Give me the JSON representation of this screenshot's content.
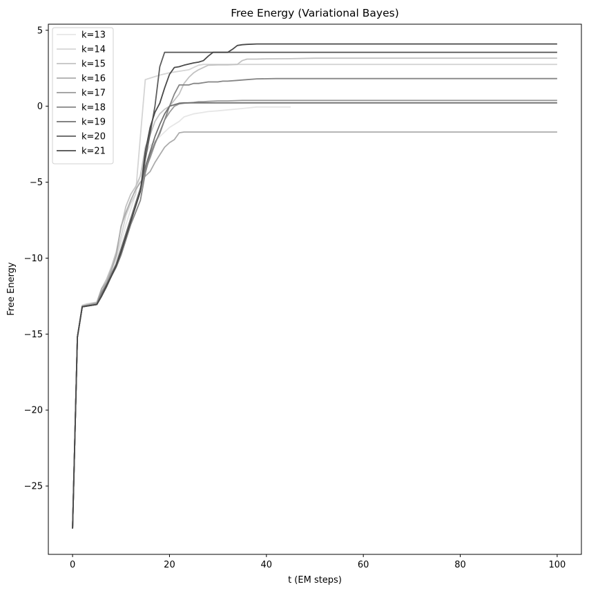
{
  "chart_data": {
    "type": "line",
    "title": "Free Energy (Variational Bayes)",
    "xlabel": "t (EM steps)",
    "ylabel": "Free Energy",
    "xlim": [
      -5,
      105
    ],
    "ylim": [
      -29.5,
      5.4
    ],
    "xticks": [
      0,
      20,
      40,
      60,
      80,
      100
    ],
    "yticks": [
      5,
      0,
      -5,
      -10,
      -15,
      -20,
      -25
    ],
    "ytick_labels": [
      "5",
      "0",
      "−5",
      "−10",
      "−15",
      "−20",
      "−25"
    ],
    "grid": false,
    "legend_position": "upper-left",
    "series": [
      {
        "name": "k=13",
        "color": "#e6e6e6",
        "x": [
          0,
          1,
          2,
          3,
          4,
          5,
          6,
          7,
          8,
          9,
          10,
          11,
          12,
          13,
          14,
          15,
          16,
          17,
          18,
          19,
          20,
          21,
          22,
          23,
          24,
          25,
          26,
          28,
          30,
          35,
          38,
          45
        ],
        "y": [
          -27.8,
          -15.2,
          -13.2,
          -13.1,
          -13.05,
          -13.0,
          -12.2,
          -11.6,
          -11.0,
          -10.2,
          -9.0,
          -7.8,
          -6.8,
          -5.8,
          -4.5,
          -3.2,
          -2.6,
          -2.3,
          -2.0,
          -1.7,
          -1.4,
          -1.2,
          -1.0,
          -0.7,
          -0.6,
          -0.5,
          -0.45,
          -0.35,
          -0.3,
          -0.15,
          -0.05,
          -0.05
        ]
      },
      {
        "name": "k=14",
        "color": "#d4d4d4",
        "x": [
          0,
          1,
          2,
          3,
          4,
          5,
          6,
          7,
          8,
          9,
          10,
          11,
          12,
          13,
          14,
          15,
          16,
          18,
          20,
          22,
          24,
          25,
          26,
          27,
          100
        ],
        "y": [
          -27.8,
          -15.2,
          -13.1,
          -13.0,
          -12.95,
          -12.9,
          -12.0,
          -11.5,
          -10.8,
          -10.0,
          -8.6,
          -7.2,
          -6.4,
          -5.8,
          -2.0,
          1.75,
          1.85,
          2.05,
          2.2,
          2.3,
          2.4,
          2.55,
          2.7,
          2.75,
          2.75
        ]
      },
      {
        "name": "k=15",
        "color": "#c2c2c2",
        "x": [
          0,
          1,
          2,
          3,
          4,
          5,
          6,
          7,
          8,
          9,
          10,
          11,
          12,
          13,
          14,
          15,
          16,
          17,
          18,
          19,
          20,
          21,
          22,
          23,
          24,
          25,
          26,
          28,
          30,
          32,
          34,
          35,
          36,
          38,
          40,
          45,
          50,
          100
        ],
        "y": [
          -27.8,
          -15.2,
          -13.15,
          -13.05,
          -13.0,
          -12.9,
          -12.0,
          -11.4,
          -10.6,
          -9.6,
          -8.0,
          -6.6,
          -5.8,
          -5.3,
          -4.6,
          -2.7,
          -1.9,
          -1.0,
          -0.5,
          -0.2,
          0.0,
          0.4,
          0.8,
          1.5,
          1.9,
          2.2,
          2.4,
          2.7,
          2.72,
          2.72,
          2.75,
          3.0,
          3.1,
          3.1,
          3.12,
          3.13,
          3.16,
          3.16
        ]
      },
      {
        "name": "k=16",
        "color": "#ababab",
        "x": [
          0,
          1,
          2,
          3,
          4,
          5,
          6,
          7,
          8,
          9,
          10,
          11,
          12,
          13,
          14,
          15,
          16,
          17,
          18,
          19,
          20,
          21,
          22,
          23,
          24,
          100
        ],
        "y": [
          -27.8,
          -15.2,
          -13.15,
          -13.1,
          -13.0,
          -12.95,
          -12.0,
          -11.6,
          -10.8,
          -9.8,
          -7.9,
          -7.0,
          -6.2,
          -5.5,
          -5.0,
          -4.6,
          -4.3,
          -3.7,
          -3.2,
          -2.7,
          -2.4,
          -2.2,
          -1.75,
          -1.7,
          -1.7,
          -1.7
        ]
      },
      {
        "name": "k=17",
        "color": "#989898",
        "x": [
          0,
          1,
          2,
          3,
          4,
          5,
          6,
          7,
          8,
          9,
          10,
          11,
          12,
          13,
          14,
          15,
          16,
          17,
          18,
          19,
          20,
          21,
          22,
          23,
          24,
          25,
          26,
          27,
          28,
          30,
          32,
          35,
          38,
          42,
          100
        ],
        "y": [
          -27.8,
          -15.2,
          -13.2,
          -13.1,
          -13.05,
          -13.0,
          -12.2,
          -11.7,
          -11.0,
          -10.4,
          -9.4,
          -8.4,
          -7.4,
          -6.6,
          -5.6,
          -4.2,
          -3.4,
          -2.5,
          -1.7,
          -0.9,
          -0.4,
          0.0,
          0.15,
          0.2,
          0.22,
          0.25,
          0.3,
          0.3,
          0.32,
          0.35,
          0.35,
          0.38,
          0.38,
          0.38,
          0.38
        ]
      },
      {
        "name": "k=18",
        "color": "#848484",
        "x": [
          0,
          1,
          2,
          3,
          4,
          5,
          6,
          7,
          8,
          9,
          10,
          11,
          12,
          13,
          14,
          15,
          16,
          17,
          18,
          19,
          20,
          21,
          22,
          23,
          24,
          25,
          26,
          27,
          28,
          29,
          30,
          31,
          32,
          34,
          36,
          38,
          42,
          100
        ],
        "y": [
          -27.8,
          -15.2,
          -13.2,
          -13.15,
          -13.1,
          -13.05,
          -12.3,
          -11.8,
          -11.2,
          -10.6,
          -9.8,
          -8.8,
          -7.8,
          -7.0,
          -6.2,
          -4.4,
          -3.2,
          -2.4,
          -1.8,
          -0.9,
          0.0,
          0.8,
          1.4,
          1.4,
          1.4,
          1.5,
          1.5,
          1.55,
          1.6,
          1.6,
          1.6,
          1.65,
          1.65,
          1.7,
          1.75,
          1.8,
          1.82,
          1.82
        ]
      },
      {
        "name": "k=19",
        "color": "#707070",
        "x": [
          0,
          1,
          2,
          3,
          4,
          5,
          6,
          7,
          8,
          9,
          10,
          11,
          12,
          13,
          14,
          15,
          16,
          17,
          18,
          19,
          20,
          21,
          22,
          23,
          100
        ],
        "y": [
          -27.8,
          -15.2,
          -13.2,
          -13.15,
          -13.1,
          -13.05,
          -12.4,
          -11.8,
          -11.1,
          -10.4,
          -9.4,
          -8.4,
          -7.4,
          -6.4,
          -5.4,
          -4.0,
          -3.0,
          -2.0,
          -1.2,
          -0.5,
          0.0,
          0.1,
          0.2,
          0.22,
          0.22
        ]
      },
      {
        "name": "k=20",
        "color": "#5c5c5c",
        "x": [
          0,
          1,
          2,
          3,
          4,
          5,
          6,
          7,
          8,
          9,
          10,
          11,
          12,
          13,
          14,
          15,
          16,
          17,
          18,
          19,
          20,
          100
        ],
        "y": [
          -27.8,
          -15.2,
          -13.2,
          -13.15,
          -13.1,
          -13.05,
          -12.5,
          -11.9,
          -11.2,
          -10.5,
          -9.6,
          -8.6,
          -7.6,
          -6.6,
          -5.6,
          -3.5,
          -1.8,
          0.0,
          2.6,
          3.55,
          3.55,
          3.55
        ]
      },
      {
        "name": "k=21",
        "color": "#484848",
        "x": [
          0,
          1,
          2,
          3,
          4,
          5,
          6,
          7,
          8,
          9,
          10,
          11,
          12,
          13,
          14,
          15,
          16,
          17,
          18,
          19,
          20,
          21,
          22,
          23,
          24,
          25,
          26,
          27,
          28,
          29,
          30,
          31,
          32,
          33,
          34,
          35,
          36,
          38,
          40,
          100
        ],
        "y": [
          -27.8,
          -15.2,
          -13.2,
          -13.15,
          -13.1,
          -13.05,
          -12.5,
          -11.8,
          -11.2,
          -10.5,
          -9.6,
          -8.6,
          -7.6,
          -6.6,
          -5.6,
          -3.0,
          -1.4,
          -0.4,
          0.2,
          1.2,
          2.1,
          2.55,
          2.6,
          2.7,
          2.78,
          2.85,
          2.9,
          3.0,
          3.3,
          3.55,
          3.55,
          3.55,
          3.55,
          3.75,
          4.0,
          4.05,
          4.07,
          4.1,
          4.1,
          4.1
        ]
      }
    ]
  }
}
